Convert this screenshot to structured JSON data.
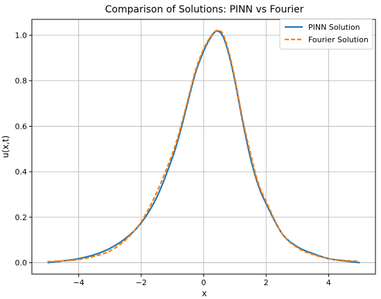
{
  "chart_data": {
    "type": "line",
    "title": "Comparison of Solutions: PINN vs Fourier",
    "xlabel": "x",
    "ylabel": "u(x,t)",
    "xlim": [
      -5.5,
      5.5
    ],
    "ylim": [
      -0.05,
      1.07
    ],
    "xticks": [
      -4,
      -2,
      0,
      2,
      4
    ],
    "yticks": [
      0.0,
      0.2,
      0.4,
      0.6,
      0.8,
      1.0
    ],
    "xtick_labels": [
      "−4",
      "−2",
      "0",
      "2",
      "4"
    ],
    "ytick_labels": [
      "0.0",
      "0.2",
      "0.4",
      "0.6",
      "0.8",
      "1.0"
    ],
    "grid": true,
    "legend_position": "top-right",
    "x": [
      -5.0,
      -4.5,
      -4.0,
      -3.5,
      -3.0,
      -2.5,
      -2.0,
      -1.5,
      -1.0,
      -0.75,
      -0.5,
      -0.25,
      0.0,
      0.2,
      0.4,
      0.6,
      0.8,
      1.0,
      1.25,
      1.5,
      1.75,
      2.0,
      2.5,
      3.0,
      3.5,
      4.0,
      4.5,
      5.0
    ],
    "series": [
      {
        "name": "PINN Solution",
        "color": "#1f77b4",
        "dash": "solid",
        "values": [
          0.0,
          0.008,
          0.018,
          0.035,
          0.063,
          0.107,
          0.175,
          0.288,
          0.462,
          0.575,
          0.71,
          0.84,
          0.93,
          0.985,
          1.018,
          1.0,
          0.92,
          0.8,
          0.62,
          0.46,
          0.34,
          0.26,
          0.13,
          0.07,
          0.04,
          0.018,
          0.008,
          0.0
        ]
      },
      {
        "name": "Fourier Solution",
        "color": "#ff7f0e",
        "dash": "dashed",
        "values": [
          0.005,
          0.008,
          0.014,
          0.028,
          0.052,
          0.1,
          0.18,
          0.31,
          0.48,
          0.59,
          0.72,
          0.85,
          0.94,
          0.99,
          1.02,
          1.01,
          0.93,
          0.81,
          0.63,
          0.48,
          0.35,
          0.27,
          0.13,
          0.066,
          0.036,
          0.018,
          0.01,
          0.006
        ]
      }
    ]
  }
}
